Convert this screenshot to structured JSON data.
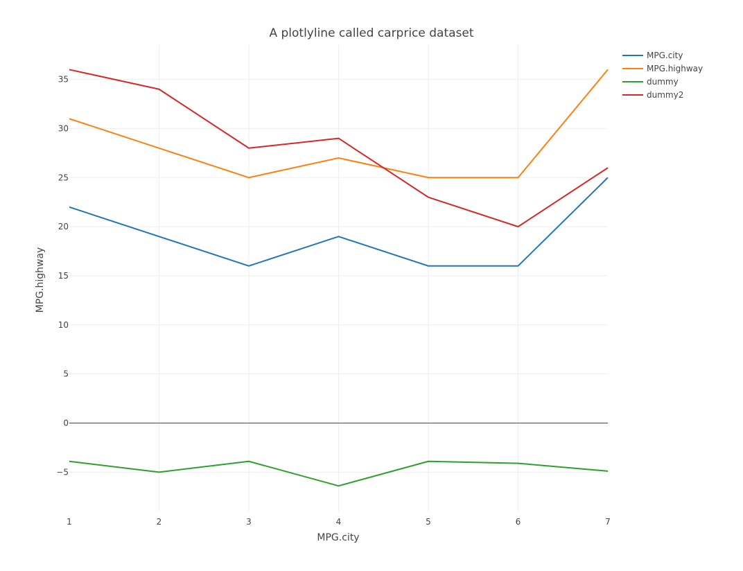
{
  "chart_data": {
    "type": "line",
    "title": "A plotlyline called carprice dataset",
    "xlabel": "MPG.city",
    "ylabel": "MPG.highway",
    "x": [
      1,
      2,
      3,
      4,
      5,
      6,
      7
    ],
    "xlim": [
      1,
      7
    ],
    "ylim": [
      -9,
      38.5
    ],
    "xticks": [
      1,
      2,
      3,
      4,
      5,
      6,
      7
    ],
    "yticks": [
      -5,
      0,
      5,
      10,
      15,
      20,
      25,
      30,
      35
    ],
    "ytick_labels": [
      "−5",
      "0",
      "5",
      "10",
      "15",
      "20",
      "25",
      "30",
      "35"
    ],
    "grid": true,
    "legend_position": "top-right",
    "series": [
      {
        "name": "MPG.city",
        "color": "#1f77b4",
        "values": [
          22,
          19,
          16,
          19,
          16,
          16,
          25
        ]
      },
      {
        "name": "MPG.highway",
        "color": "#ff7f0e",
        "values": [
          31,
          28,
          25,
          27,
          25,
          25,
          36
        ]
      },
      {
        "name": "dummy",
        "color": "#2ca02c",
        "values": [
          -3.9,
          -5.0,
          -3.9,
          -6.4,
          -3.9,
          -4.1,
          -4.9
        ]
      },
      {
        "name": "dummy2",
        "color": "#d62728",
        "values": [
          36,
          34,
          28,
          29,
          23,
          20,
          26
        ]
      }
    ]
  }
}
